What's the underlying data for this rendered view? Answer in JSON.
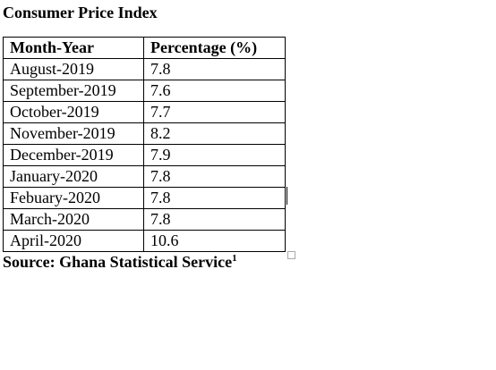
{
  "title": "Consumer Price Index",
  "table": {
    "header": [
      "Month-Year",
      "Percentage (%)"
    ],
    "rows": [
      [
        "August-2019",
        "7.8"
      ],
      [
        "September-2019",
        "7.6"
      ],
      [
        "October-2019",
        "7.7"
      ],
      [
        "November-2019",
        "8.2"
      ],
      [
        "December-2019",
        "7.9"
      ],
      [
        "January-2020",
        "7.8"
      ],
      [
        "Febuary-2020",
        "7.8"
      ],
      [
        "March-2020",
        "7.8"
      ],
      [
        "April-2020",
        "10.6"
      ]
    ]
  },
  "source": {
    "text": "Source: Ghana Statistical Service",
    "footnote": "1"
  }
}
